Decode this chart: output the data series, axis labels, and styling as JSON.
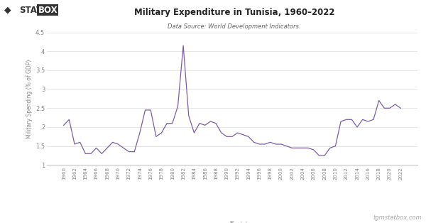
{
  "title": "Military Expenditure in Tunisia, 1960–2022",
  "subtitle": "Data Source: World Development Indicators.",
  "ylabel": "Military Spending (% of GDP)",
  "line_color": "#7B5EA7",
  "background_color": "#ffffff",
  "plot_bg_color": "#ffffff",
  "years": [
    1960,
    1961,
    1962,
    1963,
    1964,
    1965,
    1966,
    1967,
    1968,
    1969,
    1970,
    1971,
    1972,
    1973,
    1974,
    1975,
    1976,
    1977,
    1978,
    1979,
    1980,
    1981,
    1982,
    1983,
    1984,
    1985,
    1986,
    1987,
    1988,
    1989,
    1990,
    1991,
    1992,
    1993,
    1994,
    1995,
    1996,
    1997,
    1998,
    1999,
    2000,
    2001,
    2002,
    2003,
    2004,
    2005,
    2006,
    2007,
    2008,
    2009,
    2010,
    2011,
    2012,
    2013,
    2014,
    2015,
    2016,
    2017,
    2018,
    2019,
    2020,
    2021,
    2022
  ],
  "values": [
    2.05,
    2.2,
    1.55,
    1.6,
    1.3,
    1.3,
    1.45,
    1.3,
    1.45,
    1.6,
    1.55,
    1.45,
    1.35,
    1.35,
    1.85,
    2.45,
    2.45,
    1.75,
    1.85,
    2.1,
    2.1,
    2.55,
    4.15,
    2.3,
    1.85,
    2.1,
    2.05,
    2.15,
    2.1,
    1.85,
    1.75,
    1.75,
    1.85,
    1.8,
    1.75,
    1.6,
    1.55,
    1.55,
    1.6,
    1.55,
    1.55,
    1.5,
    1.45,
    1.45,
    1.45,
    1.45,
    1.4,
    1.25,
    1.25,
    1.45,
    1.5,
    2.15,
    2.2,
    2.2,
    2.0,
    2.2,
    2.15,
    2.2,
    2.7,
    2.5,
    2.5,
    2.6,
    2.5
  ],
  "ylim": [
    1.0,
    4.5
  ],
  "yticks": [
    1.0,
    1.5,
    2.0,
    2.5,
    3.0,
    3.5,
    4.0,
    4.5
  ],
  "xtick_years": [
    1960,
    1962,
    1964,
    1966,
    1968,
    1970,
    1972,
    1974,
    1976,
    1978,
    1980,
    1982,
    1984,
    1986,
    1988,
    1990,
    1992,
    1994,
    1996,
    1998,
    2000,
    2002,
    2004,
    2006,
    2008,
    2010,
    2012,
    2014,
    2016,
    2018,
    2020,
    2022
  ],
  "legend_label": "Tunisia",
  "watermark": "tgmstatbox.com",
  "grid_color": "#dddddd",
  "tick_color": "#888888",
  "title_color": "#222222",
  "subtitle_color": "#666666",
  "ylabel_color": "#888888"
}
